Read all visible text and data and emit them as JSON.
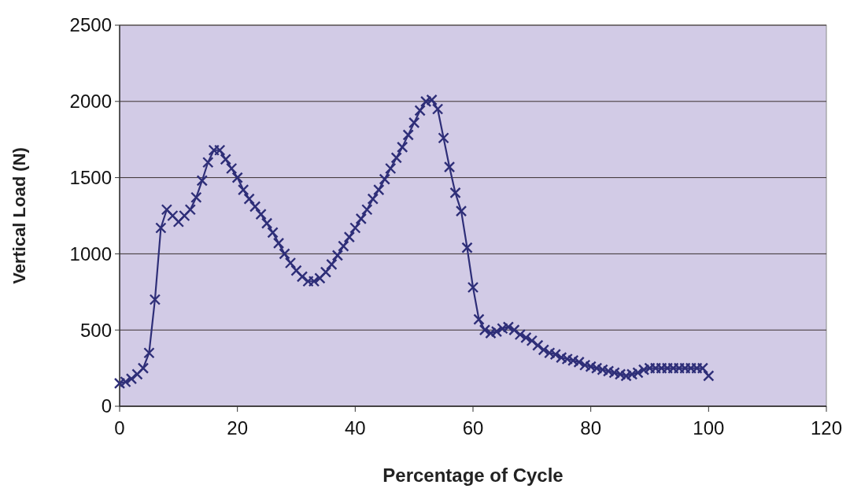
{
  "chart_data": {
    "type": "line",
    "xlabel": "Percentage of Cycle",
    "ylabel": "Vertical Load (N)",
    "xlim": [
      0,
      120
    ],
    "xticks": [
      0,
      20,
      40,
      60,
      80,
      100,
      120
    ],
    "ylim": [
      0,
      2500
    ],
    "yticks": [
      0,
      500,
      1000,
      1500,
      2000,
      2500
    ],
    "grid": "y",
    "marker": "cross",
    "line_style": "solid",
    "x": [
      0,
      1,
      2,
      3,
      4,
      5,
      6,
      7,
      8,
      9,
      10,
      11,
      12,
      13,
      14,
      15,
      16,
      17,
      18,
      19,
      20,
      21,
      22,
      23,
      24,
      25,
      26,
      27,
      28,
      29,
      30,
      31,
      32,
      33,
      34,
      35,
      36,
      37,
      38,
      39,
      40,
      41,
      42,
      43,
      44,
      45,
      46,
      47,
      48,
      49,
      50,
      51,
      52,
      53,
      54,
      55,
      56,
      57,
      58,
      59,
      60,
      61,
      62,
      63,
      64,
      65,
      66,
      67,
      68,
      69,
      70,
      71,
      72,
      73,
      74,
      75,
      76,
      77,
      78,
      79,
      80,
      81,
      82,
      83,
      84,
      85,
      86,
      87,
      88,
      89,
      90,
      91,
      92,
      93,
      94,
      95,
      96,
      97,
      98,
      99,
      100
    ],
    "series": [
      {
        "color": "#2e2e78",
        "values": [
          150,
          160,
          180,
          210,
          250,
          350,
          700,
          1170,
          1290,
          1250,
          1210,
          1250,
          1290,
          1370,
          1480,
          1600,
          1680,
          1680,
          1620,
          1560,
          1500,
          1420,
          1360,
          1310,
          1260,
          1200,
          1140,
          1070,
          1000,
          940,
          890,
          850,
          820,
          820,
          840,
          880,
          930,
          990,
          1050,
          1110,
          1170,
          1230,
          1290,
          1360,
          1420,
          1490,
          1560,
          1630,
          1700,
          1780,
          1860,
          1940,
          2000,
          2010,
          1950,
          1760,
          1570,
          1400,
          1280,
          1040,
          780,
          570,
          500,
          480,
          490,
          510,
          520,
          500,
          470,
          450,
          430,
          400,
          370,
          350,
          340,
          320,
          310,
          300,
          290,
          270,
          260,
          250,
          240,
          230,
          220,
          210,
          200,
          210,
          220,
          240,
          250,
          250,
          250,
          250,
          250,
          250,
          250,
          250,
          250,
          250,
          200
        ]
      }
    ]
  }
}
